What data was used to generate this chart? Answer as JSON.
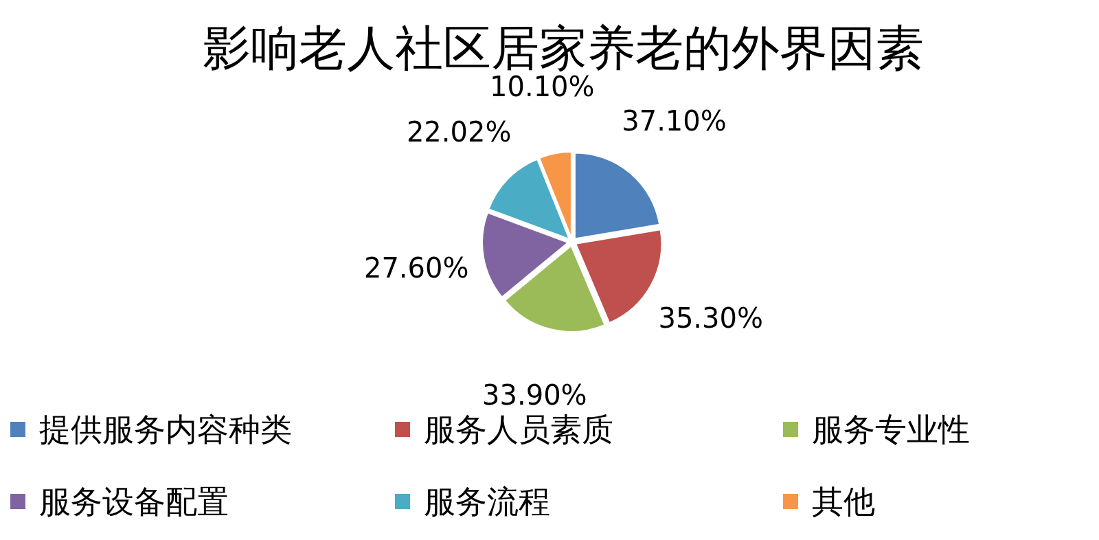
{
  "chart_data": {
    "type": "pie",
    "title": "影响老人社区居家养老的外界因素",
    "categories": [
      "提供服务内容种类",
      "服务人员素质",
      "服务专业性",
      "服务设备配置",
      "服务流程",
      "其他"
    ],
    "values": [
      37.1,
      35.3,
      33.9,
      27.6,
      22.02,
      10.1
    ],
    "value_labels": [
      "37.10%",
      "35.30%",
      "33.90%",
      "27.60%",
      "22.02%",
      "10.10%"
    ],
    "colors": [
      "#4f81bd",
      "#c0504d",
      "#9bbb59",
      "#8064a2",
      "#4bacc6",
      "#f79646"
    ],
    "legend": "bottom"
  }
}
